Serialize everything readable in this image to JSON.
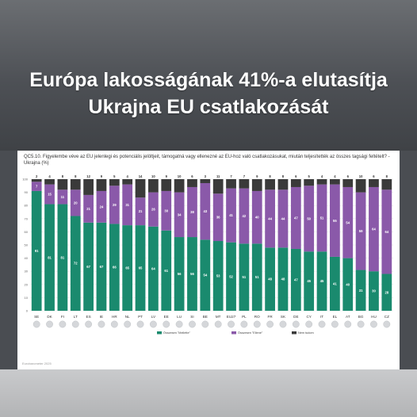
{
  "headline": {
    "line1": "Európa lakosságának 41%-a elutasítja",
    "line2": "Ukrajna EU csatlakozását"
  },
  "question": "QC5.10. Figyelembe véve az EU jelenlegi és potenciális jelöltjeit, támogatná vagy ellenezné az EU-hoz való csatlakozásukat, miután teljesítették az összes tagsági feltételt? - Ukrajna (%)",
  "source": "Eurobarometer 2025",
  "colors": {
    "favour": "#1a8a6e",
    "against": "#8a59a9",
    "dontknow": "#3a3a3a"
  },
  "chart_data": {
    "type": "bar",
    "stacked": true,
    "ylim": [
      0,
      100
    ],
    "yticks": [
      "0",
      "10",
      "20",
      "30",
      "40",
      "50",
      "60",
      "70",
      "80",
      "90",
      "100"
    ],
    "categories": [
      "SE",
      "DK",
      "FI",
      "LT",
      "ES",
      "IE",
      "HR",
      "NL",
      "PT",
      "LV",
      "EE",
      "LU",
      "SI",
      "BE",
      "MT",
      "EU27",
      "PL",
      "RO",
      "FR",
      "SK",
      "DE",
      "CY",
      "IT",
      "EL",
      "AT",
      "BG",
      "HU",
      "CZ"
    ],
    "series": [
      {
        "name": "Összesen \"Mellette\"",
        "key": "favour",
        "values": [
          91,
          81,
          81,
          72,
          67,
          67,
          66,
          65,
          65,
          64,
          61,
          56,
          56,
          54,
          53,
          52,
          51,
          51,
          48,
          48,
          47,
          45,
          45,
          41,
          40,
          31,
          30,
          28
        ]
      },
      {
        "name": "Összesen \"Ellene\"",
        "key": "against",
        "values": [
          7,
          15,
          11,
          20,
          21,
          24,
          29,
          31,
          21,
          26,
          30,
          34,
          38,
          43,
          36,
          41,
          42,
          40,
          44,
          44,
          47,
          50,
          51,
          55,
          54,
          59,
          64,
          64
        ]
      },
      {
        "name": "Nem tudom",
        "key": "dontknow",
        "values": [
          2,
          4,
          8,
          8,
          12,
          9,
          5,
          4,
          14,
          10,
          9,
          10,
          6,
          3,
          11,
          7,
          7,
          9,
          8,
          8,
          6,
          5,
          4,
          4,
          6,
          10,
          6,
          8
        ]
      }
    ]
  }
}
